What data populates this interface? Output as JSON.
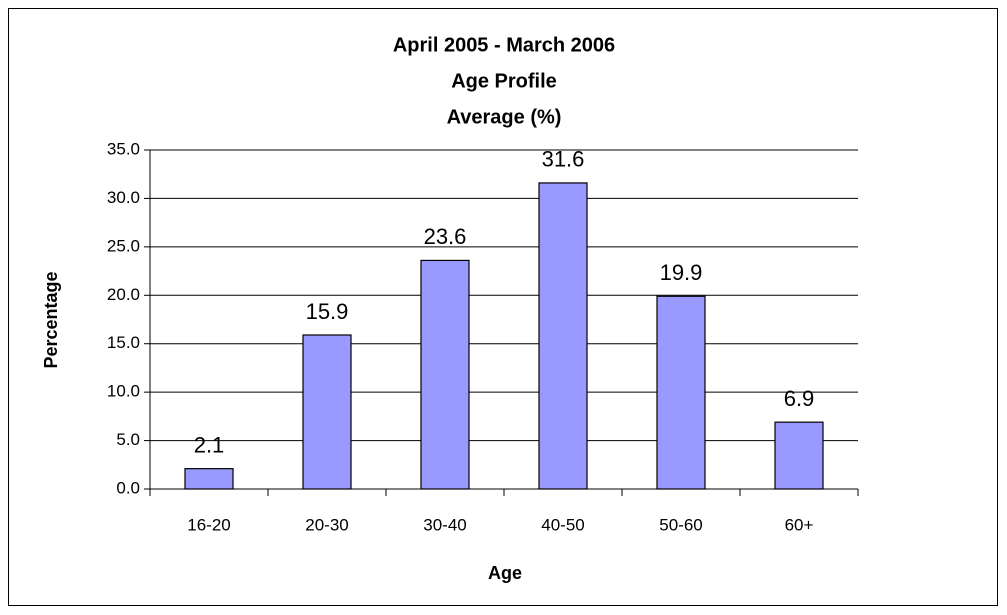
{
  "chart_data": {
    "type": "bar",
    "title": [
      "April 2005 - March 2006",
      "Age Profile",
      "Average (%)"
    ],
    "x_label": "Age",
    "y_label": "Percentage",
    "categories": [
      "16-20",
      "20-30",
      "30-40",
      "40-50",
      "50-60",
      "60+"
    ],
    "values": [
      2.1,
      15.9,
      23.6,
      31.6,
      19.9,
      6.9
    ],
    "color": "#9999ff",
    "ylim": [
      0,
      35
    ],
    "yticks": [
      {
        "value": 0,
        "label": "0.0"
      },
      {
        "value": 5,
        "label": "5.0"
      },
      {
        "value": 10,
        "label": "10.0"
      },
      {
        "value": 15,
        "label": "15.0"
      },
      {
        "value": 20,
        "label": "20.0"
      },
      {
        "value": 25,
        "label": "25.0"
      },
      {
        "value": 30,
        "label": "30.0"
      },
      {
        "value": 35,
        "label": "35.0"
      }
    ],
    "grid": true
  }
}
